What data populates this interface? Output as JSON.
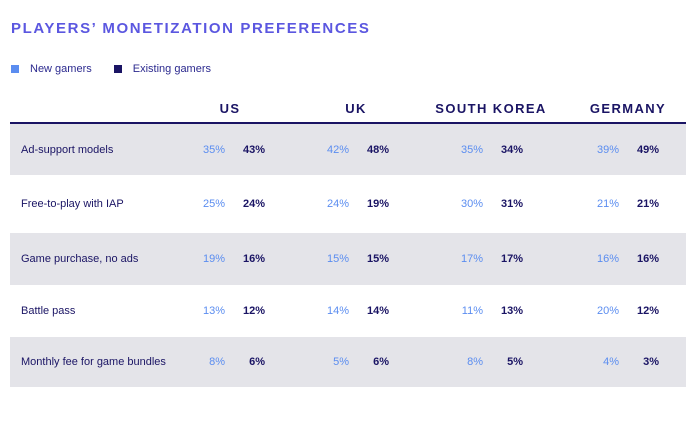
{
  "chart_data": {
    "type": "table",
    "title": "PLAYERS’ MONETIZATION PREFERENCES",
    "legend": [
      {
        "name": "New gamers",
        "color": "#5b8df0"
      },
      {
        "name": "Existing gamers",
        "color": "#1a1464"
      }
    ],
    "columns": [
      "US",
      "UK",
      "SOUTH KOREA",
      "GERMANY"
    ],
    "rows": [
      {
        "label": "Ad-support models",
        "shaded": true,
        "values": [
          [
            "35%",
            "43%"
          ],
          [
            "42%",
            "48%"
          ],
          [
            "35%",
            "34%"
          ],
          [
            "39%",
            "49%"
          ]
        ]
      },
      {
        "label": "Free-to-play with IAP",
        "shaded": false,
        "values": [
          [
            "25%",
            "24%"
          ],
          [
            "24%",
            "19%"
          ],
          [
            "30%",
            "31%"
          ],
          [
            "21%",
            "21%"
          ]
        ]
      },
      {
        "label": "Game purchase, no ads",
        "shaded": true,
        "values": [
          [
            "19%",
            "16%"
          ],
          [
            "15%",
            "15%"
          ],
          [
            "17%",
            "17%"
          ],
          [
            "16%",
            "16%"
          ]
        ]
      },
      {
        "label": "Battle pass",
        "shaded": false,
        "values": [
          [
            "13%",
            "12%"
          ],
          [
            "14%",
            "14%"
          ],
          [
            "11%",
            "13%"
          ],
          [
            "20%",
            "12%"
          ]
        ]
      },
      {
        "label": "Monthly fee for game bundles",
        "shaded": true,
        "values": [
          [
            "8%",
            "6%"
          ],
          [
            "5%",
            "6%"
          ],
          [
            "8%",
            "5%"
          ],
          [
            "4%",
            "3%"
          ]
        ]
      }
    ]
  }
}
